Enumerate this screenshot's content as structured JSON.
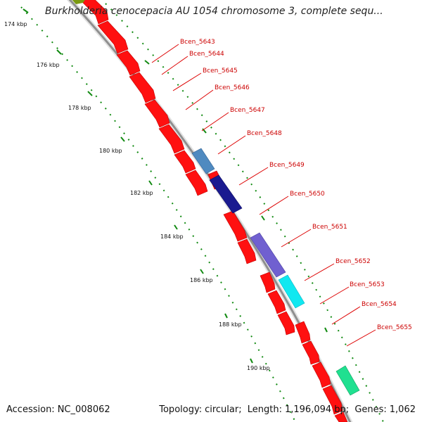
{
  "title": "Burkholderia cenocepacia AU 1054 chromosome 3, complete sequ...",
  "footer": {
    "accession_label": "Accession:",
    "accession": "NC_008062",
    "topology_label": "Topology:",
    "topology": "circular;",
    "length_label": "Length:",
    "length": "1,196,094 bp;",
    "genes_label": "Genes:",
    "genes": "1,062"
  },
  "ruler": {
    "unit": "kbp",
    "labels": [
      "174 kbp",
      "176 kbp",
      "178 kbp",
      "180 kbp",
      "182 kbp",
      "184 kbp",
      "186 kbp",
      "188 kbp",
      "190 kbp"
    ]
  },
  "genes": [
    {
      "name": "Bcen_5643",
      "color": "#ff0000"
    },
    {
      "name": "Bcen_5644",
      "color": "#ff0000"
    },
    {
      "name": "Bcen_5645",
      "color": "#ff0000"
    },
    {
      "name": "Bcen_5646",
      "color": "#ff0000"
    },
    {
      "name": "Bcen_5647",
      "color": "#ff0000"
    },
    {
      "name": "Bcen_5648",
      "color": "#ff0000"
    },
    {
      "name": "Bcen_5649",
      "color": "#ff0000"
    },
    {
      "name": "Bcen_5650",
      "color": "#ff0000"
    },
    {
      "name": "Bcen_5651",
      "color": "#ff0000"
    },
    {
      "name": "Bcen_5652",
      "color": "#ff0000"
    },
    {
      "name": "Bcen_5653",
      "color": "#ff0000"
    },
    {
      "name": "Bcen_5654",
      "color": "#ff0000"
    },
    {
      "name": "Bcen_5655",
      "color": "#ff0000"
    }
  ],
  "colors": {
    "backbone": "#9a9a9a",
    "ruler": "#118a11",
    "cds": "#ff0000",
    "label": "#cc0000",
    "feature_steelblue": "#4f8ac0",
    "feature_navy": "#1a1a90",
    "feature_slate": "#7060d0",
    "feature_cyan": "#10e8f0",
    "feature_green": "#20e090",
    "feature_olive": "#7a9a10"
  }
}
